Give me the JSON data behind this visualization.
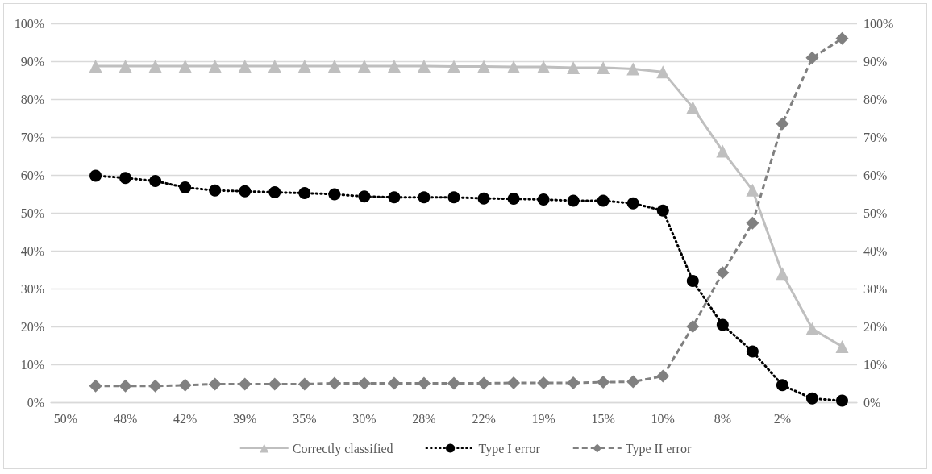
{
  "chart_data": {
    "type": "line",
    "categories": [
      "50%",
      null,
      "48%",
      null,
      "42%",
      null,
      "39%",
      null,
      "35%",
      null,
      "30%",
      null,
      "28%",
      null,
      "22%",
      null,
      "19%",
      null,
      "15%",
      null,
      "10%",
      null,
      "8%",
      null,
      "2%",
      null,
      null
    ],
    "series": [
      {
        "name": "Correctly classified",
        "color": "#bfbfbf",
        "marker": "triangle",
        "line_style": "solid",
        "values": [
          null,
          88.7,
          88.7,
          88.7,
          88.7,
          88.7,
          88.7,
          88.7,
          88.7,
          88.7,
          88.7,
          88.7,
          88.7,
          88.6,
          88.6,
          88.5,
          88.5,
          88.3,
          88.3,
          88.0,
          87.2,
          77.8,
          66.3,
          56.0,
          34.0,
          19.4,
          14.7
        ]
      },
      {
        "name": "Type I error",
        "color": "#000000",
        "marker": "circle",
        "line_style": "dotted",
        "values": [
          null,
          59.8,
          59.2,
          58.4,
          56.7,
          55.9,
          55.7,
          55.4,
          55.2,
          54.9,
          54.3,
          54.1,
          54.1,
          54.1,
          53.8,
          53.7,
          53.5,
          53.2,
          53.2,
          52.5,
          50.6,
          32.0,
          20.4,
          13.4,
          4.5,
          1.0,
          0.4
        ]
      },
      {
        "name": "Type II error",
        "color": "#808080",
        "marker": "diamond",
        "line_style": "dashed",
        "values": [
          null,
          4.3,
          4.3,
          4.3,
          4.5,
          4.8,
          4.8,
          4.8,
          4.8,
          5.0,
          5.0,
          5.0,
          5.0,
          5.0,
          5.0,
          5.1,
          5.1,
          5.1,
          5.3,
          5.4,
          6.9,
          20.0,
          34.2,
          47.3,
          73.5,
          90.9,
          96.0
        ]
      }
    ],
    "ylim": [
      0,
      100
    ],
    "yticks": [
      {
        "value": 0,
        "label": "0%"
      },
      {
        "value": 10,
        "label": "10%"
      },
      {
        "value": 20,
        "label": "20%"
      },
      {
        "value": 30,
        "label": "30%"
      },
      {
        "value": 40,
        "label": "40%"
      },
      {
        "value": 50,
        "label": "50%"
      },
      {
        "value": 60,
        "label": "60%"
      },
      {
        "value": 70,
        "label": "70%"
      },
      {
        "value": 80,
        "label": "80%"
      },
      {
        "value": 90,
        "label": "90%"
      },
      {
        "value": 100,
        "label": "100%"
      }
    ],
    "y2lim": [
      0,
      100
    ],
    "y2ticks": [
      {
        "value": 0,
        "label": "0%"
      },
      {
        "value": 10,
        "label": "10%"
      },
      {
        "value": 20,
        "label": "20%"
      },
      {
        "value": 30,
        "label": "30%"
      },
      {
        "value": 40,
        "label": "40%"
      },
      {
        "value": 50,
        "label": "50%"
      },
      {
        "value": 60,
        "label": "60%"
      },
      {
        "value": 70,
        "label": "70%"
      },
      {
        "value": 80,
        "label": "80%"
      },
      {
        "value": 90,
        "label": "90%"
      },
      {
        "value": 100,
        "label": "100%"
      }
    ],
    "grid": "y",
    "legend": "bottom"
  }
}
